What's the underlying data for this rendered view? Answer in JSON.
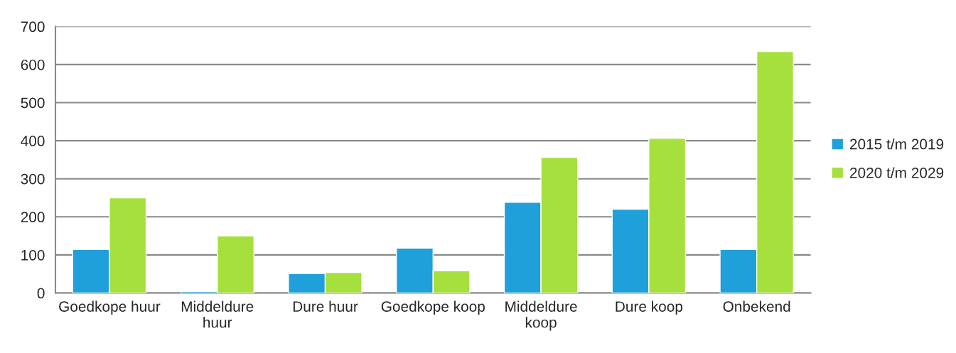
{
  "chart_data": {
    "type": "bar",
    "categories": [
      "Goedkope huur",
      "Middeldure\nhuur",
      "Dure huur",
      "Goedkope koop",
      "Middeldure\nkoop",
      "Dure koop",
      "Onbekend"
    ],
    "series": [
      {
        "name": "2015 t/m 2019",
        "color": "#1fa0da",
        "values": [
          114,
          4,
          51,
          118,
          238,
          220,
          114
        ]
      },
      {
        "name": "2020 t/m 2029",
        "color": "#a6e03c",
        "values": [
          250,
          150,
          54,
          58,
          356,
          406,
          634
        ]
      }
    ],
    "ylim": [
      0,
      700
    ],
    "yticks": [
      0,
      100,
      200,
      300,
      400,
      500,
      600,
      700
    ],
    "grid": "y",
    "legend": "right"
  }
}
